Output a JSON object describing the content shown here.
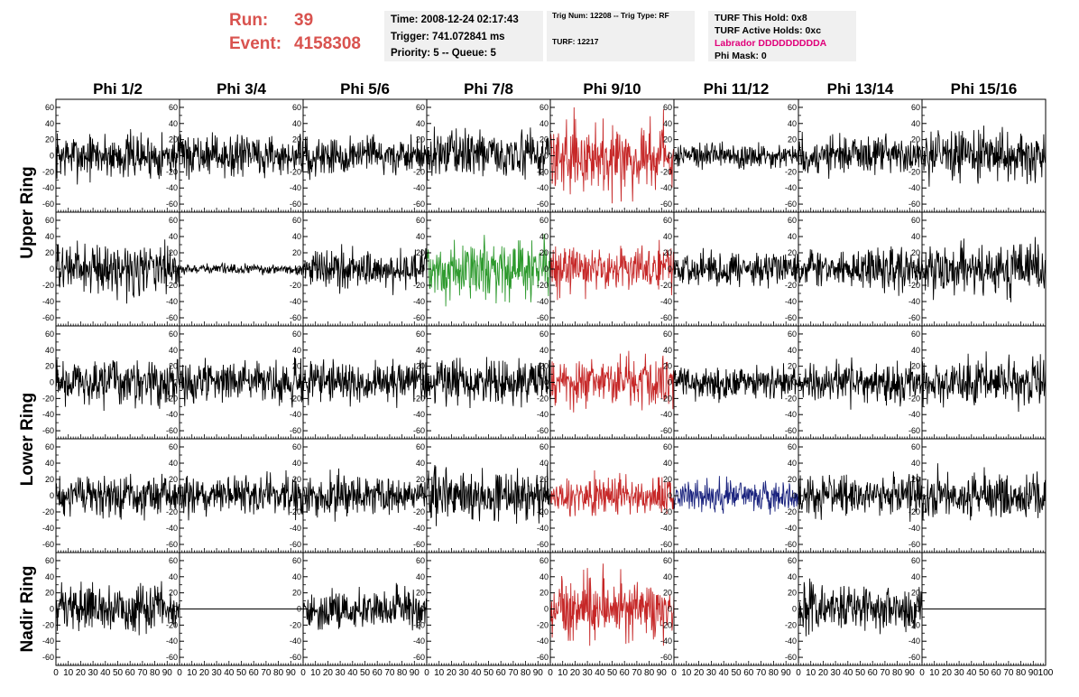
{
  "run_info": {
    "run_label": "Run:",
    "run_value": "39",
    "event_label": "Event:",
    "event_value": "4158308",
    "color": "#d9534f"
  },
  "time_box": {
    "time": "Time: 2008-12-24 02:17:43",
    "trigger": "Trigger: 741.072841 ms",
    "priority": "Priority: 5 -- Queue: 5"
  },
  "trig_box": {
    "trig": "Trig Num: 12208 -- Trig Type: RF",
    "turf": "TURF: 12217"
  },
  "turf_box": {
    "hold": "TURF This Hold: 0x8",
    "active": "TURF Active Holds: 0xc",
    "labrador": "Labrador DDDDDDDDDA",
    "phimask": "Phi Mask: 0"
  },
  "chart_data": {
    "type": "line",
    "columns": [
      "Phi 1/2",
      "Phi 3/4",
      "Phi 5/6",
      "Phi 7/8",
      "Phi 9/10",
      "Phi 11/12",
      "Phi 13/14",
      "Phi 15/16"
    ],
    "row_groups": [
      {
        "label": "Upper Ring",
        "rows": [
          0,
          1
        ]
      },
      {
        "label": "Lower Ring",
        "rows": [
          2,
          3
        ]
      },
      {
        "label": "Nadir Ring",
        "rows": [
          4
        ]
      }
    ],
    "ylim": [
      -70,
      70
    ],
    "y_ticks": [
      -60,
      -40,
      -20,
      0,
      20,
      40,
      60
    ],
    "xlim": [
      0,
      100
    ],
    "x_ticks": [
      0,
      10,
      20,
      30,
      40,
      50,
      60,
      70,
      80,
      90
    ],
    "x_last_tick": "100",
    "colors": {
      "black": "#000000",
      "red": "#c62828",
      "green": "#2e9a2e",
      "blue": "#1a237e"
    },
    "panels": [
      [
        {
          "amp": 14,
          "color": "black"
        },
        {
          "amp": 12,
          "color": "black"
        },
        {
          "amp": 12,
          "color": "black"
        },
        {
          "amp": 14,
          "color": "black"
        },
        {
          "amp": 24,
          "color": "red"
        },
        {
          "amp": 8,
          "color": "black"
        },
        {
          "amp": 12,
          "color": "black"
        },
        {
          "amp": 15,
          "color": "black"
        }
      ],
      [
        {
          "amp": 15,
          "color": "black"
        },
        {
          "amp": 3,
          "color": "black"
        },
        {
          "amp": 12,
          "color": "black"
        },
        {
          "amp": 20,
          "color": "green"
        },
        {
          "amp": 16,
          "color": "red"
        },
        {
          "amp": 10,
          "color": "black"
        },
        {
          "amp": 12,
          "color": "black"
        },
        {
          "amp": 15,
          "color": "black"
        }
      ],
      [
        {
          "amp": 14,
          "color": "black"
        },
        {
          "amp": 12,
          "color": "black"
        },
        {
          "amp": 12,
          "color": "black"
        },
        {
          "amp": 14,
          "color": "black"
        },
        {
          "amp": 18,
          "color": "red"
        },
        {
          "amp": 10,
          "color": "black"
        },
        {
          "amp": 12,
          "color": "black"
        },
        {
          "amp": 14,
          "color": "black"
        }
      ],
      [
        {
          "amp": 12,
          "color": "black"
        },
        {
          "amp": 12,
          "color": "black"
        },
        {
          "amp": 12,
          "color": "black"
        },
        {
          "amp": 16,
          "color": "black"
        },
        {
          "amp": 14,
          "color": "red"
        },
        {
          "amp": 11,
          "color": "blue"
        },
        {
          "amp": 12,
          "color": "black"
        },
        {
          "amp": 14,
          "color": "black"
        }
      ],
      [
        {
          "amp": 14,
          "color": "black"
        },
        {
          "amp": 0,
          "color": "black"
        },
        {
          "amp": 12,
          "color": "black"
        },
        {
          "amp": 0,
          "color": "none"
        },
        {
          "amp": 22,
          "color": "red"
        },
        {
          "amp": 0,
          "color": "none"
        },
        {
          "amp": 14,
          "color": "black"
        },
        {
          "amp": 0,
          "color": "black"
        }
      ]
    ]
  }
}
